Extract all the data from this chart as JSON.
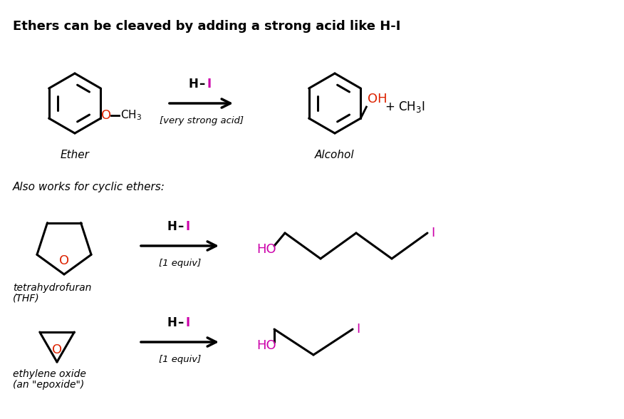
{
  "title": "Ethers can be cleaved by adding a strong acid like H-I",
  "title_fontsize": 13,
  "bg_color": "#ffffff",
  "black": "#000000",
  "red": "#dd2200",
  "magenta": "#cc00aa",
  "also_works_text": "Also works for cyclic ethers:",
  "row1": {
    "reagent_label": "H–I",
    "condition_label": "[very strong acid]",
    "left_label": "Ether",
    "right_label": "Alcohol",
    "extra": "+ CH₃I"
  },
  "row2": {
    "reagent_label": "H–I",
    "condition_label": "[1 equiv]",
    "left_label": "tetrahydrofuran\n(THF)"
  },
  "row3": {
    "reagent_label": "H–I",
    "condition_label": "[1 equiv]",
    "left_label": "ethylene oxide\n(an \"epoxide\")"
  }
}
